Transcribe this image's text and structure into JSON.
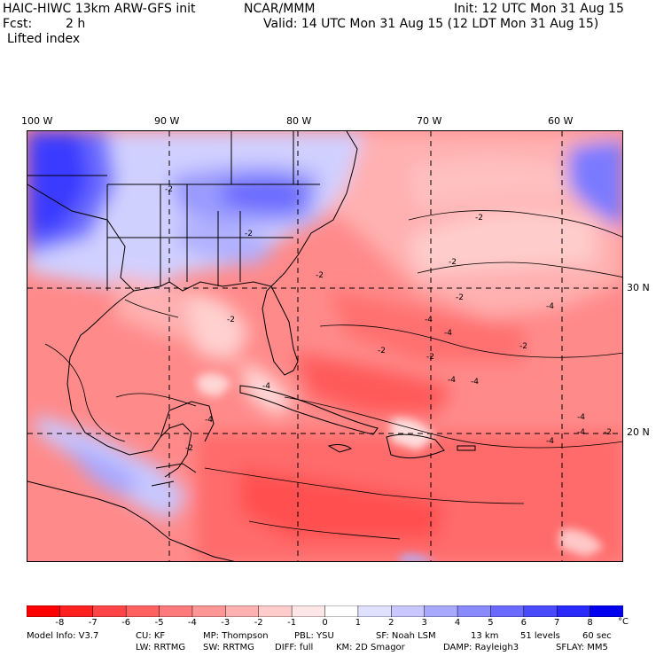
{
  "header": {
    "model_title": "HAIC-HIWC 13km ARW-GFS init",
    "org": "NCAR/MMM",
    "init_time": "Init: 12 UTC Mon 31 Aug 15",
    "forecast_label": "Fcst:",
    "forecast_value": "2 h",
    "valid_time": "Valid: 14 UTC Mon 31 Aug 15 (12 LDT Mon 31 Aug 15)",
    "field_name": "Lifted index"
  },
  "axes": {
    "lon_labels": [
      "100 W",
      "90 W",
      "80 W",
      "70 W",
      "60 W"
    ],
    "lat_labels": [
      "30 N",
      "20 N"
    ]
  },
  "contour_labels": [
    "-2",
    "-2",
    "-2",
    "-2",
    "-2",
    "-2",
    "-2",
    "-2",
    "-4",
    "-4",
    "-4",
    "-4",
    "-4",
    "-4",
    "-4",
    "-4",
    "-2",
    "-2",
    "-4",
    "-4",
    "-2",
    "-2"
  ],
  "colorbar": {
    "labels": [
      "-8",
      "-7",
      "-6",
      "-5",
      "-4",
      "-3",
      "-2",
      "-1",
      "0",
      "1",
      "2",
      "3",
      "4",
      "5",
      "6",
      "7",
      "8"
    ],
    "unit": "°C",
    "colors": [
      "#ff0000",
      "#ff2020",
      "#ff4545",
      "#ff6060",
      "#ff7a7a",
      "#ff9696",
      "#ffb0b0",
      "#ffcccc",
      "#ffe6e6",
      "#ffffff",
      "#e0e0ff",
      "#c8c8ff",
      "#a8a8ff",
      "#8a8aff",
      "#6a6aff",
      "#4a4aff",
      "#2a2aff",
      "#0000ee"
    ]
  },
  "model_info": {
    "line1": [
      "Model Info: V3.7",
      "CU: KF",
      "MP: Thompson",
      "PBL: YSU",
      "SF: Noah LSM",
      "13 km",
      "51 levels",
      "60 sec"
    ],
    "line2": [
      "LW: RRTMG",
      "SW: RRTMG",
      "DIFF: full",
      "KM: 2D Smagor",
      "DAMP: Rayleigh3",
      "SFLAY: MM5"
    ]
  }
}
